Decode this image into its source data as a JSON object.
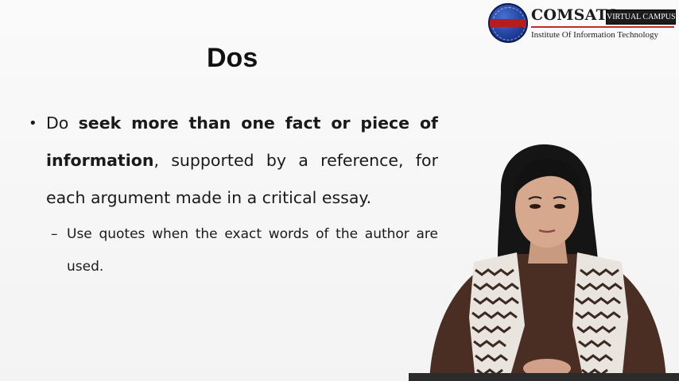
{
  "logo": {
    "brand": "COMSATS",
    "campus": "VIRTUAL CAMPUS",
    "institute": "Institute Of Information Technology",
    "seal_text": "COMSATS"
  },
  "slide": {
    "title": "Dos",
    "bullet1": {
      "part1": "Do ",
      "bold1": "seek more than one fact or piece of information",
      "part2": ", supported by a reference, for each argument made in a critical essay."
    },
    "sub_bullet": "Use quotes when the exact words of the author are used."
  },
  "colors": {
    "background": "#f7f7f7",
    "accent_red": "#c62828",
    "seal_blue": "#1f3f9a"
  }
}
